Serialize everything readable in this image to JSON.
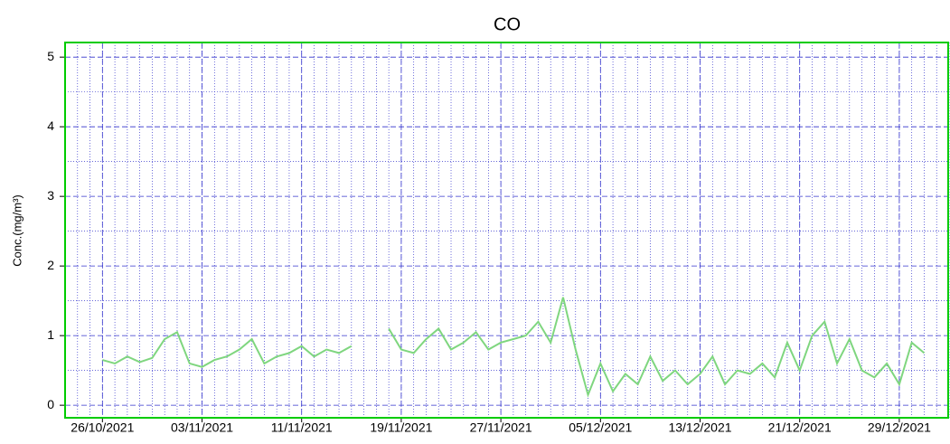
{
  "chart_data": {
    "type": "line",
    "title": "CO",
    "y_label": "Conc.(mg/m³)",
    "x": [
      "26/10/2021",
      "27/10/2021",
      "28/10/2021",
      "29/10/2021",
      "30/10/2021",
      "31/10/2021",
      "01/11/2021",
      "02/11/2021",
      "03/11/2021",
      "04/11/2021",
      "05/11/2021",
      "06/11/2021",
      "07/11/2021",
      "08/11/2021",
      "09/11/2021",
      "10/11/2021",
      "11/11/2021",
      "12/11/2021",
      "13/11/2021",
      "14/11/2021",
      "15/11/2021",
      "16/11/2021",
      "17/11/2021",
      "18/11/2021",
      "19/11/2021",
      "20/11/2021",
      "21/11/2021",
      "22/11/2021",
      "23/11/2021",
      "24/11/2021",
      "25/11/2021",
      "26/11/2021",
      "27/11/2021",
      "28/11/2021",
      "29/11/2021",
      "30/11/2021",
      "01/12/2021",
      "02/12/2021",
      "03/12/2021",
      "04/12/2021",
      "05/12/2021",
      "06/12/2021",
      "07/12/2021",
      "08/12/2021",
      "09/12/2021",
      "10/12/2021",
      "11/12/2021",
      "12/12/2021",
      "13/12/2021",
      "14/12/2021",
      "15/12/2021",
      "16/12/2021",
      "17/12/2021",
      "18/12/2021",
      "19/12/2021",
      "20/12/2021",
      "21/12/2021",
      "22/12/2021",
      "23/12/2021",
      "24/12/2021",
      "25/12/2021",
      "26/12/2021",
      "27/12/2021",
      "28/12/2021",
      "29/12/2021",
      "30/12/2021",
      "31/12/2021"
    ],
    "series": [
      {
        "name": "CO",
        "color": "#7fd67f",
        "values": [
          0.65,
          0.6,
          0.7,
          0.62,
          0.68,
          0.95,
          1.05,
          0.6,
          0.55,
          0.65,
          0.7,
          0.8,
          0.95,
          0.6,
          0.7,
          0.75,
          0.85,
          0.7,
          0.8,
          0.75,
          0.85,
          null,
          null,
          1.1,
          0.8,
          0.75,
          0.95,
          1.1,
          0.8,
          0.9,
          1.05,
          0.8,
          0.9,
          0.95,
          1.0,
          1.2,
          0.9,
          1.55,
          0.8,
          0.15,
          0.6,
          0.2,
          0.45,
          0.3,
          0.7,
          0.35,
          0.5,
          0.3,
          0.45,
          0.7,
          0.3,
          0.5,
          0.45,
          0.6,
          0.4,
          0.9,
          0.5,
          1.0,
          1.2,
          0.6,
          0.95,
          0.5,
          0.4,
          0.6,
          0.3,
          0.9,
          0.75
        ]
      }
    ],
    "xlim": [
      "23/10/2021",
      "02/01/2022"
    ],
    "xticks": [
      "26/10/2021",
      "03/11/2021",
      "11/11/2021",
      "19/11/2021",
      "27/11/2021",
      "05/12/2021",
      "13/12/2021",
      "21/12/2021",
      "29/12/2021"
    ],
    "ylim": [
      -0.18,
      5.21
    ],
    "yticks": [
      0,
      1,
      2,
      3,
      4,
      5
    ],
    "grid": true,
    "minor_grid": true
  }
}
